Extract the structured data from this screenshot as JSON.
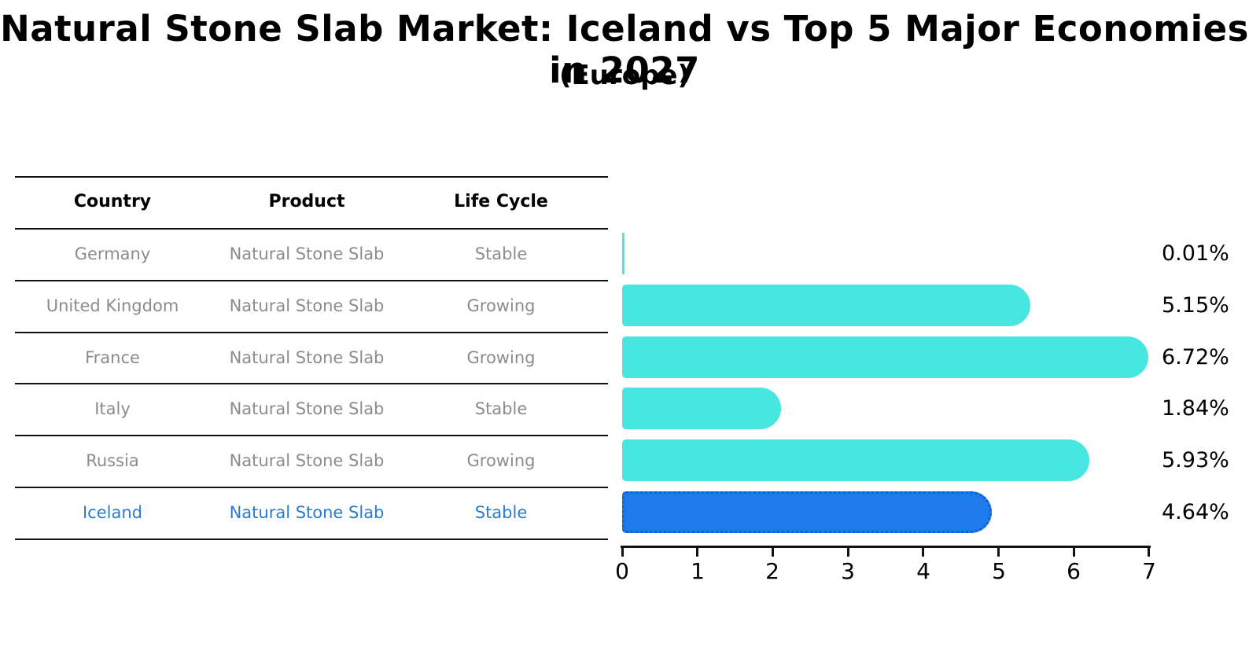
{
  "title": "Natural Stone Slab Market: Iceland vs Top 5 Major Economies in 2027",
  "subtitle": "(Europe)",
  "table": {
    "headers": [
      "Country",
      "Product",
      "Life Cycle"
    ],
    "rows": [
      {
        "country": "Germany",
        "product": "Natural Stone Slab",
        "life_cycle": "Stable",
        "highlighted": false
      },
      {
        "country": "United Kingdom",
        "product": "Natural Stone Slab",
        "life_cycle": "Growing",
        "highlighted": false
      },
      {
        "country": "France",
        "product": "Natural Stone Slab",
        "life_cycle": "Growing",
        "highlighted": false
      },
      {
        "country": "Italy",
        "product": "Natural Stone Slab",
        "life_cycle": "Stable",
        "highlighted": false
      },
      {
        "country": "Russia",
        "product": "Natural Stone Slab",
        "life_cycle": "Growing",
        "highlighted": false
      },
      {
        "country": "Iceland",
        "product": "Natural Stone Slab",
        "life_cycle": "Stable",
        "highlighted": true
      }
    ]
  },
  "chart_data": {
    "type": "bar",
    "orientation": "horizontal",
    "categories": [
      "Germany",
      "United Kingdom",
      "France",
      "Italy",
      "Russia",
      "Iceland"
    ],
    "values": [
      0.01,
      5.15,
      6.72,
      1.84,
      5.93,
      4.64
    ],
    "value_labels": [
      "0.01%",
      "5.15%",
      "6.72%",
      "1.84%",
      "5.93%",
      "4.64%"
    ],
    "highlight_index": 5,
    "xlim": [
      0,
      7
    ],
    "x_ticks": [
      "0",
      "1",
      "2",
      "3",
      "4",
      "5",
      "6",
      "7"
    ],
    "grid": false,
    "legend": false,
    "bar_color": "#48e6e0",
    "highlight_bar_color": "#1e7cea",
    "highlight_border_color": "#0e5fd8",
    "highlight_text_color": "#2b7bd0",
    "row_text_color": "#8c8c8c",
    "axis_color": "#111111"
  }
}
